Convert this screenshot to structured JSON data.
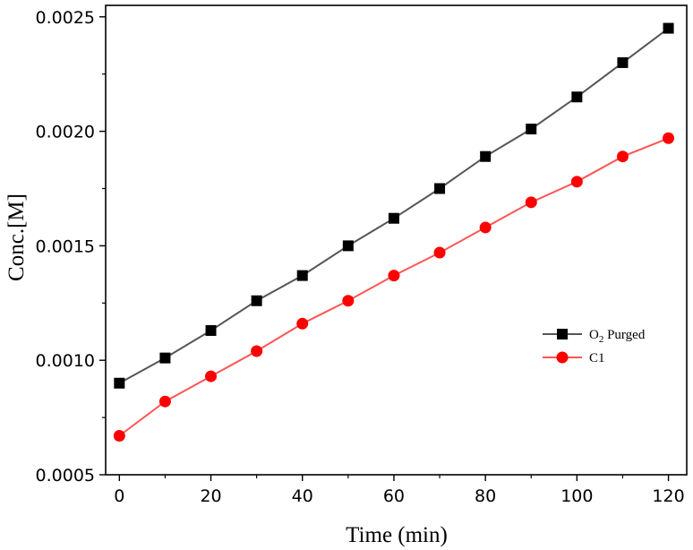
{
  "chart_data": {
    "type": "line",
    "x": [
      0,
      10,
      20,
      30,
      40,
      50,
      60,
      70,
      80,
      90,
      100,
      110,
      120
    ],
    "series": [
      {
        "name": "O2 Purged",
        "legend_main": "O",
        "legend_sub": "2",
        "legend_rest": " Purged",
        "marker": "square",
        "marker_color": "#000000",
        "line_color": "#555555",
        "values": [
          0.0009,
          0.00101,
          0.00113,
          0.00126,
          0.00137,
          0.0015,
          0.00162,
          0.00175,
          0.00189,
          0.00201,
          0.00215,
          0.0023,
          0.00245
        ]
      },
      {
        "name": "C1",
        "legend_main": "C1",
        "legend_sub": "",
        "legend_rest": "",
        "marker": "circle",
        "marker_color": "#ff0000",
        "line_color": "#ff5555",
        "values": [
          0.00067,
          0.00082,
          0.00093,
          0.00104,
          0.00116,
          0.00126,
          0.00137,
          0.00147,
          0.00158,
          0.00169,
          0.00178,
          0.00189,
          0.00197
        ]
      }
    ],
    "xlabel": "Time (min)",
    "ylabel": "Conc.[M]",
    "xlim": [
      -3,
      124
    ],
    "ylim": [
      0.0005,
      0.00255
    ],
    "x_ticks": [
      0,
      20,
      40,
      60,
      80,
      100,
      120
    ],
    "y_ticks": [
      0.0005,
      0.001,
      0.0015,
      0.002,
      0.0025
    ],
    "x_tick_labels": [
      "0",
      "20",
      "40",
      "60",
      "80",
      "100",
      "120"
    ],
    "y_tick_labels": [
      "0.0005",
      "0.0010",
      "0.0015",
      "0.0020",
      "0.0025"
    ],
    "legend_position": "right-middle"
  }
}
